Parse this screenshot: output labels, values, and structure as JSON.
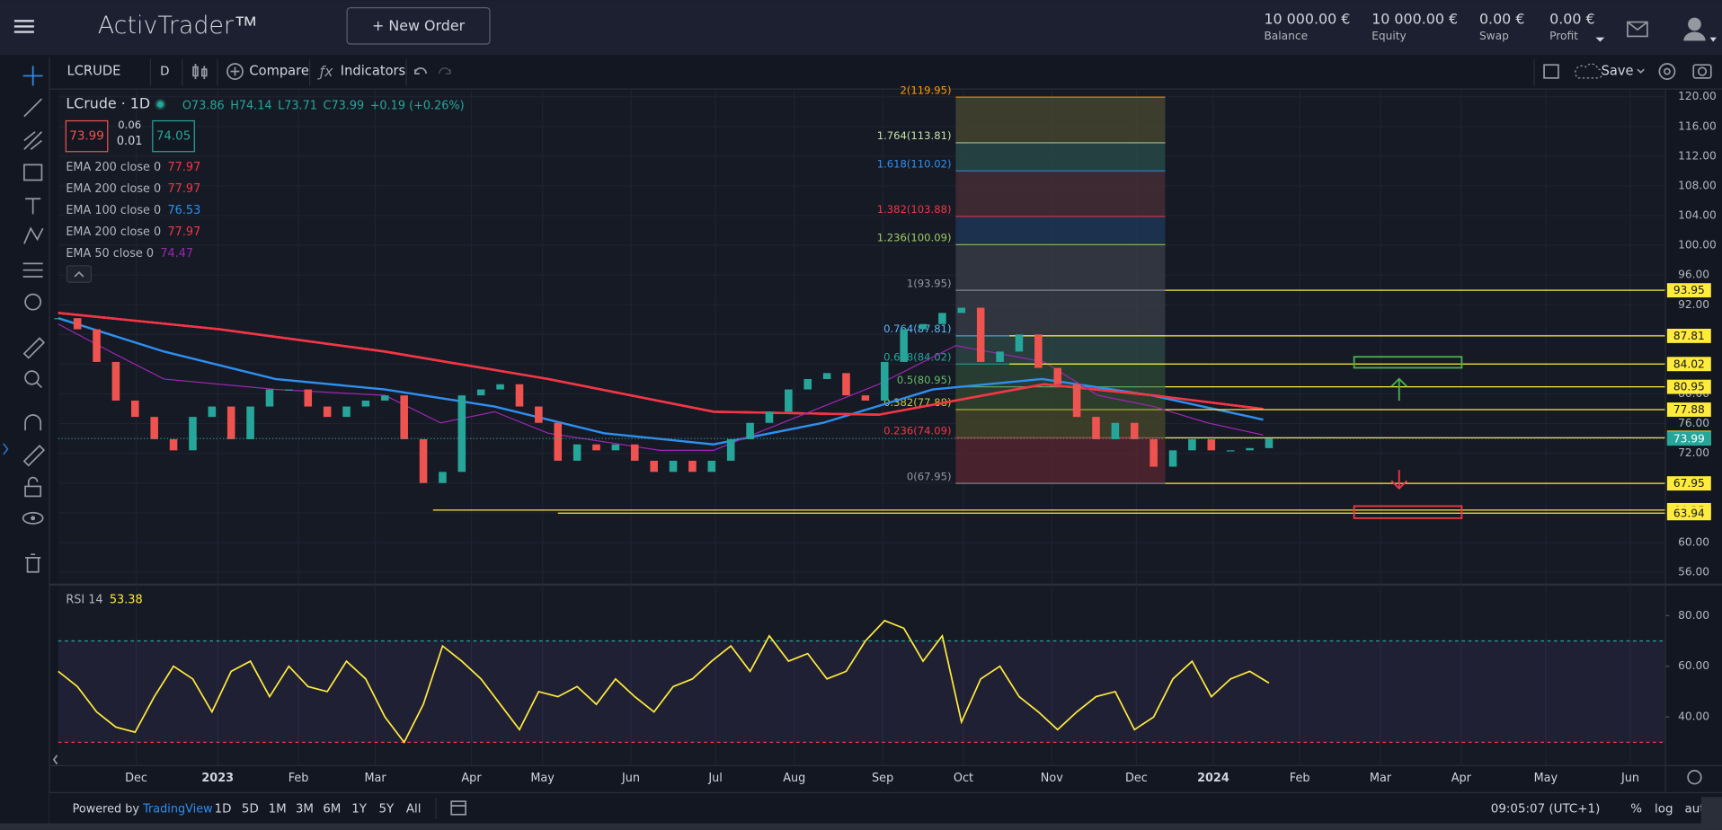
{
  "header": {
    "logo": "ActivTrader™",
    "new_order": "+ New Order",
    "stats": [
      {
        "value": "10 000.00 €",
        "label": "Balance"
      },
      {
        "value": "10 000.00 €",
        "label": "Equity"
      },
      {
        "value": "0.00 €",
        "label": "Swap"
      },
      {
        "value": "0.00 €",
        "label": "Profit"
      }
    ]
  },
  "toolbar": {
    "symbol": "LCRUDE",
    "interval": "D",
    "compare": "Compare",
    "indicators": "Indicators",
    "save": "Save"
  },
  "legend": {
    "symbol": "LCrude · 1D",
    "ohlc": [
      "O73.86",
      "H74.14",
      "L73.71",
      "C73.99",
      "+0.19 (+0.26%)"
    ],
    "bid": "73.99",
    "spread": [
      "0.06",
      "0.01"
    ],
    "ask": "74.05"
  },
  "chart_data": [
    {
      "type": "candlestick",
      "up_color": "#26a69a",
      "down_color": "#ef5350",
      "grid": true,
      "x": [
        0,
        1,
        2,
        3,
        4,
        5,
        6,
        7,
        8,
        9,
        10,
        11,
        12,
        13,
        14,
        15,
        16,
        17,
        18,
        19,
        20,
        21,
        22,
        23,
        24,
        25,
        26,
        27,
        28,
        29,
        30,
        31,
        32,
        33,
        34,
        35,
        36,
        37,
        38,
        39,
        40,
        41,
        42,
        43,
        44,
        45,
        46,
        47,
        48,
        49,
        50,
        51,
        52,
        53,
        54,
        55,
        56,
        57,
        58,
        59,
        60,
        61,
        62,
        63
      ],
      "values": [
        90.2,
        88.7,
        84.3,
        79.1,
        76.9,
        73.9,
        72.4,
        76.9,
        78.3,
        73.9,
        78.3,
        80.6,
        80.6,
        78.3,
        76.9,
        78.3,
        79.1,
        79.8,
        73.9,
        68.0,
        69.5,
        79.8,
        80.6,
        81.3,
        78.3,
        76.1,
        71.0,
        73.2,
        72.4,
        73.2,
        71.0,
        69.5,
        71.0,
        69.5,
        71.0,
        73.9,
        76.1,
        77.6,
        80.6,
        82.0,
        82.8,
        79.8,
        79.1,
        84.3,
        88.7,
        89.4,
        90.9,
        91.6,
        84.3,
        85.7,
        88.0,
        83.5,
        81.3,
        76.9,
        73.9,
        76.1,
        73.9,
        70.2,
        72.4,
        73.9,
        72.4,
        72.4,
        72.7,
        73.99
      ],
      "xlim": [
        0,
        83.6
      ],
      "xticks": [
        {
          "value": 4.06,
          "label": "Dec"
        },
        {
          "value": 8.3,
          "label": "2023"
        },
        {
          "value": 12.5,
          "label": "Feb"
        },
        {
          "value": 16.5,
          "label": "Mar"
        },
        {
          "value": 21.5,
          "label": "Apr"
        },
        {
          "value": 25.2,
          "label": "May"
        },
        {
          "value": 29.8,
          "label": "Jun"
        },
        {
          "value": 34.2,
          "label": "Jul"
        },
        {
          "value": 38.3,
          "label": "Aug"
        },
        {
          "value": 42.9,
          "label": "Sep"
        },
        {
          "value": 47.1,
          "label": "Oct"
        },
        {
          "value": 51.7,
          "label": "Nov"
        },
        {
          "value": 56.1,
          "label": "Dec"
        },
        {
          "value": 60.1,
          "label": "2024"
        },
        {
          "value": 64.6,
          "label": "Feb"
        },
        {
          "value": 68.8,
          "label": "Mar"
        },
        {
          "value": 73.0,
          "label": "Apr"
        },
        {
          "value": 77.4,
          "label": "May"
        },
        {
          "value": 81.8,
          "label": "Jun"
        }
      ],
      "ylim": [
        54.4,
        120.9
      ],
      "yticks": [
        {
          "value": 56,
          "label": "56.00"
        },
        {
          "value": 60,
          "label": "60.00"
        },
        {
          "value": 64,
          "label": "64.00"
        },
        {
          "value": 68,
          "label": "68.00"
        },
        {
          "value": 72,
          "label": "72.00"
        },
        {
          "value": 76,
          "label": "76.00"
        },
        {
          "value": 80,
          "label": "80.00"
        },
        {
          "value": 84,
          "label": "84.00"
        },
        {
          "value": 88,
          "label": "88.00"
        },
        {
          "value": 92,
          "label": "92.00"
        },
        {
          "value": 96,
          "label": "96.00"
        },
        {
          "value": 100,
          "label": "100.00"
        },
        {
          "value": 104,
          "label": "104.00"
        },
        {
          "value": 108,
          "label": "108.00"
        },
        {
          "value": 112,
          "label": "112.00"
        },
        {
          "value": 116,
          "label": "116.00"
        },
        {
          "value": 120,
          "label": "120.00"
        }
      ],
      "indicators": [
        {
          "name": "EMA 200 close 0",
          "color": "#f23645",
          "x": [
            0,
            8.4,
            17,
            25.5,
            34.1,
            42.7,
            51.3,
            57,
            62.7
          ],
          "values": [
            90.9,
            88.7,
            85.7,
            82.0,
            77.6,
            77.2,
            81.3,
            79.8,
            77.97
          ]
        },
        {
          "name": "EMA 200 close 0",
          "color": "#f23645",
          "x": [
            0,
            8.4,
            17,
            25.5,
            34.1,
            42.7,
            51.3,
            57,
            62.7
          ],
          "values": [
            90.9,
            88.7,
            85.7,
            82.0,
            77.6,
            77.2,
            81.3,
            79.8,
            77.97
          ]
        },
        {
          "name": "EMA 100 close 0",
          "color": "#2e8fef",
          "x": [
            0,
            5.5,
            11.3,
            17,
            22.7,
            28.4,
            34.1,
            39.8,
            45.5,
            51.2,
            56.9,
            62.7
          ],
          "values": [
            90.2,
            85.7,
            82.0,
            80.6,
            78.3,
            74.7,
            73.2,
            76.1,
            80.6,
            82.0,
            79.8,
            76.53
          ]
        },
        {
          "name": "EMA 200 close 0",
          "color": "#f23645",
          "x": [
            0,
            8.4,
            17,
            25.5,
            34.1,
            42.7,
            51.3,
            57,
            62.7
          ],
          "values": [
            90.9,
            88.7,
            85.7,
            82.0,
            77.6,
            77.2,
            81.3,
            79.8,
            77.97
          ]
        },
        {
          "name": "EMA 50 close 0",
          "color": "#9c27b0",
          "x": [
            0,
            2.7,
            5.5,
            11.3,
            17,
            19.9,
            22.7,
            25.5,
            31.3,
            34.1,
            37,
            42.7,
            46.7,
            51.3,
            54.1,
            57,
            59.8,
            62.7
          ],
          "values": [
            89.4,
            85.7,
            82.0,
            80.6,
            79.8,
            76.1,
            77.6,
            74.7,
            72.4,
            72.4,
            75.4,
            81.3,
            86.5,
            84.3,
            79.8,
            78.3,
            76.1,
            74.47
          ]
        }
      ],
      "fib": {
        "x": [
          46.7,
          57.6
        ],
        "levels": [
          {
            "value": 67.95,
            "label": "0(67.95)",
            "color": "#9598a1"
          },
          {
            "value": 74.09,
            "label": "0.236(74.09)",
            "color": "#f23645"
          },
          {
            "value": 77.88,
            "label": "0.382(77.88)",
            "color": "#c0ca33"
          },
          {
            "value": 80.95,
            "label": "0.5(80.95)",
            "color": "#66bb6a"
          },
          {
            "value": 84.02,
            "label": "0.618(84.02)",
            "color": "#26a69a"
          },
          {
            "value": 87.81,
            "label": "0.764(87.81)",
            "color": "#5eb5f5"
          },
          {
            "value": 93.95,
            "label": "1(93.95)",
            "color": "#9598a1"
          },
          {
            "value": 100.09,
            "label": "1.236(100.09)",
            "color": "#9ccc65"
          },
          {
            "value": 103.88,
            "label": "1.382(103.88)",
            "color": "#f23645"
          },
          {
            "value": 110.02,
            "label": "1.618(110.02)",
            "color": "#2e8fef"
          },
          {
            "value": 113.81,
            "label": "1.764(113.81)",
            "color": "#c5e1a5"
          },
          {
            "value": 119.95,
            "label": "2(119.95)",
            "color": "#ff9800"
          }
        ],
        "band_colors": [
          "#5a2730",
          "#4a4a2a",
          "#35492f",
          "#2e4a36",
          "#2d4a47",
          "#3a3f4a",
          "#3a3f4a",
          "#1f3a5c",
          "#4a2f36",
          "#2b4d4a",
          "#4a4a30"
        ]
      },
      "price_lines": [
        {
          "value": 93.95,
          "x_start": 57.6,
          "color": "#ffeb3b"
        },
        {
          "value": 87.81,
          "x_start": 49.5,
          "color": "#ffeb3b"
        },
        {
          "value": 84.02,
          "x_start": 49.5,
          "color": "#ffeb3b"
        },
        {
          "value": 80.95,
          "x_start": 57.6,
          "color": "#ffeb3b"
        },
        {
          "value": 77.88,
          "x_start": 57.6,
          "color": "#ffeb3b"
        },
        {
          "value": 74.09,
          "x_start": 57.6,
          "color": "#ffeb3b"
        },
        {
          "value": 67.95,
          "x_start": 57.6,
          "color": "#ffeb3b"
        },
        {
          "value": 64.35,
          "x_start": 19.5,
          "color": "#ffeb3b"
        },
        {
          "value": 63.94,
          "x_start": 26.0,
          "color": "#ffeb3b"
        }
      ],
      "last_color": "#26a69a"
    },
    {
      "type": "line",
      "title": "RSI 14",
      "color": "#ffeb3b",
      "values": [
        58,
        52,
        42,
        36,
        34,
        48,
        60,
        55,
        42,
        58,
        62,
        48,
        60,
        52,
        50,
        62,
        55,
        40,
        30,
        45,
        68,
        62,
        55,
        45,
        35,
        50,
        48,
        52,
        45,
        55,
        48,
        42,
        52,
        55,
        62,
        68,
        58,
        72,
        62,
        65,
        55,
        58,
        70,
        78,
        75,
        62,
        72,
        38,
        55,
        60,
        48,
        42,
        35,
        42,
        48,
        50,
        35,
        40,
        55,
        62,
        48,
        55,
        58,
        53.38
      ],
      "ylim": [
        21,
        92
      ],
      "yticks": [
        {
          "value": 40,
          "label": "40.00"
        },
        {
          "value": 60,
          "label": "60.00"
        },
        {
          "value": 80,
          "label": "80.00"
        }
      ],
      "bands": [
        30,
        70
      ]
    }
  ],
  "footer": {
    "powered": "Powered by",
    "brand": "TradingView",
    "ranges": [
      "1D",
      "5D",
      "1M",
      "3M",
      "6M",
      "1Y",
      "5Y",
      "All"
    ],
    "time": "09:05:07 (UTC+1)",
    "options": [
      "%",
      "log",
      "auto"
    ]
  }
}
